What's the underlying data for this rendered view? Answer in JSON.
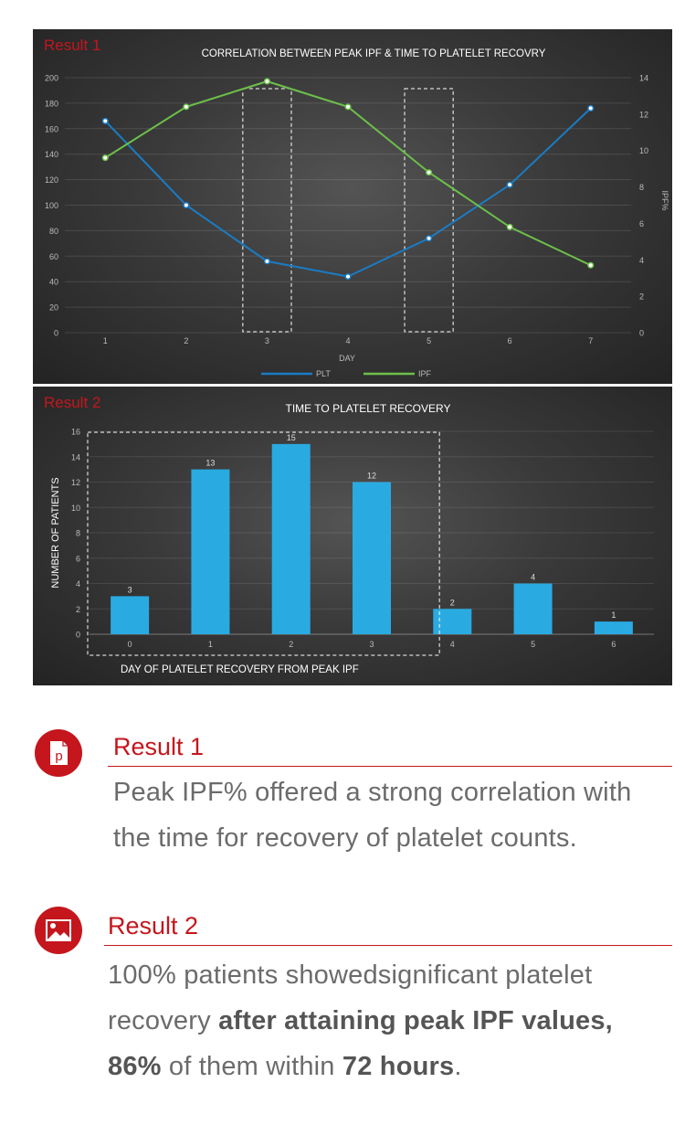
{
  "panels": {
    "p1_tag": "Result 1",
    "p2_tag": "Result 2"
  },
  "colors": {
    "plt": "#1a7cc4",
    "ipf": "#6cc04a",
    "bar": "#29abe2",
    "accent": "#c4161c"
  },
  "chart_data": [
    {
      "type": "line",
      "title": "CORRELATION BETWEEN PEAK IPF & TIME TO PLATELET RECOVRY",
      "xlabel": "DAY",
      "ylabel_right": "IPF%",
      "x": [
        1,
        2,
        3,
        4,
        5,
        6,
        7
      ],
      "ylim": [
        0,
        200
      ],
      "y_ticks": [
        0,
        20,
        40,
        60,
        80,
        100,
        120,
        140,
        160,
        180,
        200
      ],
      "y2lim": [
        0,
        14
      ],
      "y2_ticks": [
        0,
        2,
        4,
        6,
        8,
        10,
        12,
        14
      ],
      "highlight_x": [
        3,
        5
      ],
      "legend_position": "bottom",
      "series": [
        {
          "name": "PLT",
          "axis": "left",
          "values": [
            166,
            100,
            56,
            44,
            74,
            116,
            176
          ]
        },
        {
          "name": "IPF",
          "axis": "right",
          "values": [
            9.6,
            12.4,
            13.8,
            12.4,
            8.8,
            5.8,
            3.7
          ]
        }
      ]
    },
    {
      "type": "bar",
      "title": "TIME TO PLATELET RECOVERY",
      "xlabel": "DAY OF PLATELET RECOVERY FROM PEAK IPF",
      "ylabel": "NUMBER OF PATIENTS",
      "categories": [
        "0",
        "1",
        "2",
        "3",
        "4",
        "5",
        "6"
      ],
      "values": [
        3,
        13,
        15,
        12,
        2,
        4,
        1
      ],
      "ylim": [
        0,
        16
      ],
      "y_ticks": [
        0,
        2,
        4,
        6,
        8,
        10,
        12,
        14,
        16
      ],
      "highlight_categories": [
        "0",
        "1",
        "2",
        "3"
      ]
    }
  ],
  "sections": {
    "result1": {
      "icon": "document-p-icon",
      "icon_letter": "p",
      "title": "Result 1",
      "line1": "Peak IPF% offered a strong correlation with",
      "line2": "the time for recovery of platelet counts."
    },
    "result2": {
      "icon": "image-icon",
      "title": "Result 2",
      "line1": "100% patients showedsignificant platelet",
      "line2_a": "recovery ",
      "line2_b": "after attaining peak IPF values,",
      "line3_a": "86%",
      "line3_b": " of them within ",
      "line3_c": "72 hours",
      "line3_d": "."
    }
  }
}
